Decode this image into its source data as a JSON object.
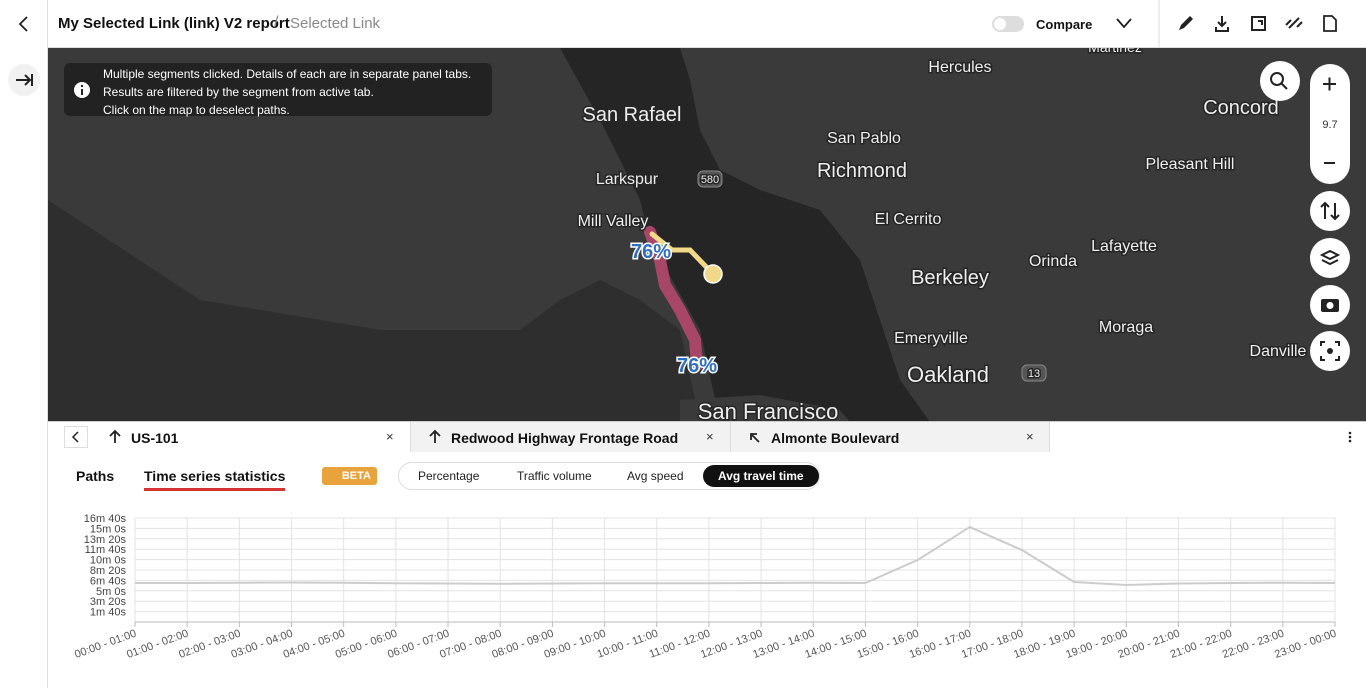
{
  "header": {
    "title": "My Selected Link (link) V2 report",
    "separator": "/",
    "crumb": "Selected Link",
    "compare": "Compare"
  },
  "notice": [
    "Multiple segments clicked. Details of each are in separate panel tabs.",
    "Results are filtered by the segment from active tab.",
    "Click on the map to deselect paths."
  ],
  "map": {
    "labels": [
      "Martinez",
      "Hercules",
      "San Rafael",
      "San Pablo",
      "Concord",
      "Richmond",
      "Pleasant Hill",
      "Larkspur",
      "580",
      "Mill Valley",
      "El Cerrito",
      "Lafayette",
      "Berkeley",
      "Orinda",
      "Moraga",
      "Emeryville",
      "Oakland",
      "13",
      "Danville",
      "San Francisco"
    ],
    "badges": [
      "76%",
      "76%"
    ],
    "zoom": "9.7"
  },
  "tabs": [
    "US-101",
    "Redwood Highway Frontage Road",
    "Almonte Boulevard"
  ],
  "subtabs": [
    "Paths",
    "Time series statistics"
  ],
  "beta": "BETA",
  "metrics": [
    "Percentage",
    "Traffic volume",
    "Avg speed",
    "Avg travel time"
  ],
  "chart_data": {
    "type": "line",
    "color": "#cccccc",
    "grid": true,
    "categories": [
      "00:00 - 01:00",
      "01:00 - 02:00",
      "02:00 - 03:00",
      "03:00 - 04:00",
      "04:00 - 05:00",
      "05:00 - 06:00",
      "06:00 - 07:00",
      "07:00 - 08:00",
      "08:00 - 09:00",
      "09:00 - 10:00",
      "10:00 - 11:00",
      "11:00 - 12:00",
      "12:00 - 13:00",
      "13:00 - 14:00",
      "14:00 - 15:00",
      "15:00 - 16:00",
      "16:00 - 17:00",
      "17:00 - 18:00",
      "18:00 - 19:00",
      "19:00 - 20:00",
      "20:00 - 21:00",
      "21:00 - 22:00",
      "22:00 - 23:00",
      "23:00 - 00:00"
    ],
    "values": [
      375,
      375,
      378,
      380,
      378,
      372,
      370,
      368,
      370,
      372,
      372,
      372,
      375,
      378,
      375,
      596,
      913,
      692,
      385,
      356,
      370,
      375,
      378,
      375
    ],
    "ylim": [
      0,
      1000
    ],
    "yticks": [
      {
        "value": 100,
        "label": "1m 40s"
      },
      {
        "value": 200,
        "label": "3m 20s"
      },
      {
        "value": 300,
        "label": "5m 0s"
      },
      {
        "value": 400,
        "label": "6m 40s"
      },
      {
        "value": 500,
        "label": "8m 20s"
      },
      {
        "value": 600,
        "label": "10m 0s"
      },
      {
        "value": 700,
        "label": "11m 40s"
      },
      {
        "value": 800,
        "label": "13m 20s"
      },
      {
        "value": 900,
        "label": "15m 0s"
      },
      {
        "value": 1000,
        "label": "16m 40s"
      }
    ]
  }
}
